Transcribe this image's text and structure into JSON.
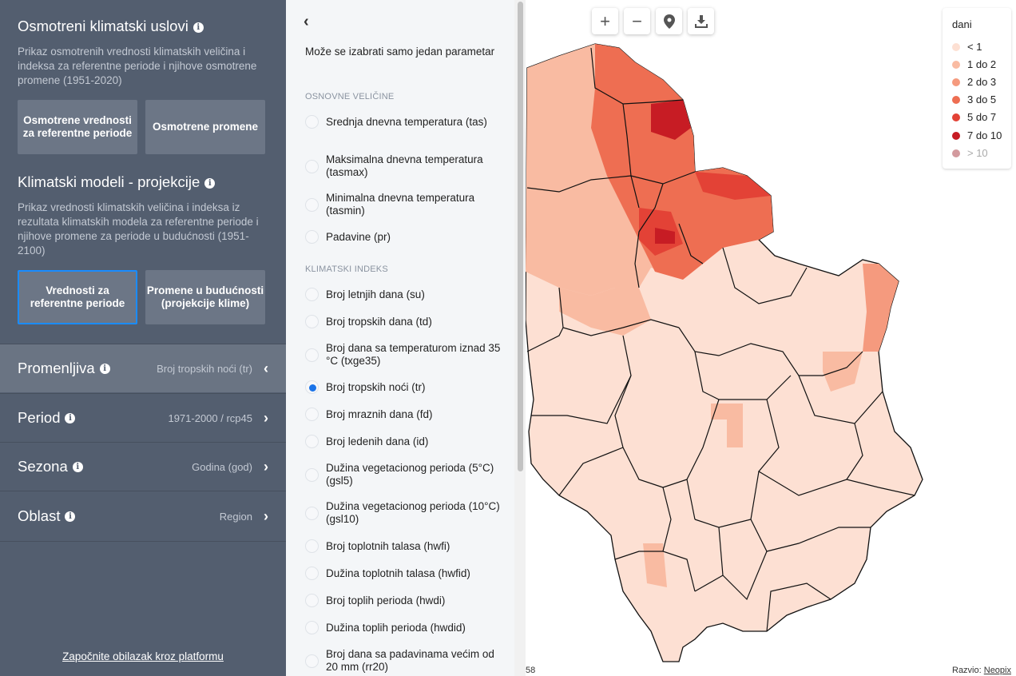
{
  "left": {
    "observed": {
      "title": "Osmotreni klimatski uslovi",
      "desc": "Prikaz osmotrenih vrednosti klimatskih veličina i indeksa za referentne periode i njihove osmotrene promene (1951-2020)",
      "btn1": "Osmotrene vrednosti za referentne periode",
      "btn2": "Osmotrene promene"
    },
    "models": {
      "title": "Klimatski modeli - projekcije",
      "desc": "Prikaz vrednosti klimatskih veličina i indeksa iz rezultata klimatskih modela za referentne periode i njihove promene za periode u budućnosti (1951-2100)",
      "btn1": "Vrednosti za referentne periode",
      "btn2": "Promene u budućnosti (projekcije klime)"
    },
    "params": [
      {
        "label": "Promenljiva",
        "value": "Broj tropskih noći (tr)"
      },
      {
        "label": "Period",
        "value": "1971-2000 / rcp45"
      },
      {
        "label": "Sezona",
        "value": "Godina (god)"
      },
      {
        "label": "Oblast",
        "value": "Region"
      }
    ],
    "tour": "Započnite obilazak kroz platformu"
  },
  "middle": {
    "intro": "Može se izabrati samo jedan parametar",
    "group1": "OSNOVNE VELIČINE",
    "group2": "KLIMATSKI INDEKS",
    "basic": [
      "Srednja dnevna temperatura (tas)",
      "Maksimalna dnevna temperatura (tasmax)",
      "Minimalna dnevna temperatura (tasmin)",
      "Padavine (pr)"
    ],
    "indices": [
      "Broj letnjih dana (su)",
      "Broj tropskih dana (td)",
      "Broj dana sa temperaturom iznad 35 °C (txge35)",
      "Broj tropskih noći (tr)",
      "Broj mraznih dana (fd)",
      "Broj ledenih dana (id)",
      "Dužina vegetacionog perioda (5°C) (gsl5)",
      "Dužina vegetacionog perioda (10°C) (gsl10)",
      "Broj toplotnih talasa (hwfi)",
      "Dužina toplotnih talasa (hwfid)",
      "Broj toplih perioda (hwdi)",
      "Dužina toplih perioda (hwdid)",
      "Broj dana sa padavinama većim od 20 mm (rr20)"
    ],
    "selected": "Broj tropskih noći (tr)"
  },
  "map": {
    "controls": [
      "plus-icon",
      "minus-icon",
      "location-pin-icon",
      "download-icon"
    ],
    "legend": {
      "title": "dani",
      "items": [
        {
          "label": "< 1",
          "color": "#fde0d3"
        },
        {
          "label": "1 do 2",
          "color": "#f9bba2"
        },
        {
          "label": "2 do 3",
          "color": "#f59a7e"
        },
        {
          "label": "3 do 5",
          "color": "#ee6e52"
        },
        {
          "label": "5 do 7",
          "color": "#e34236"
        },
        {
          "label": "7 do 10",
          "color": "#c71c24"
        },
        {
          "label": "> 10",
          "color": "#d39a9e"
        }
      ]
    },
    "footer_left": "58",
    "footer_right_prefix": "Razvio:",
    "footer_right_link": "Neopix"
  }
}
